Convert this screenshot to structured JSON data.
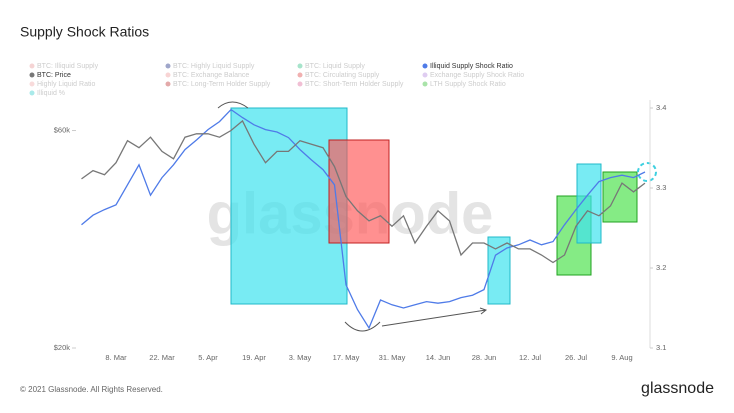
{
  "chart_data": {
    "type": "line",
    "title": "Supply Shock Ratios",
    "watermark": "glassnode",
    "footer": "© 2021 Glassnode. All Rights Reserved.",
    "logo": "glassnode",
    "categories": [
      null,
      null,
      null,
      "8. Mar",
      null,
      null,
      null,
      "22. Mar",
      null,
      null,
      null,
      "5. Apr",
      null,
      null,
      null,
      "19. Apr",
      null,
      null,
      null,
      "3. May",
      null,
      null,
      null,
      "17. May",
      null,
      null,
      null,
      "31. May",
      null,
      null,
      null,
      "14. Jun",
      null,
      null,
      null,
      "28. Jun",
      null,
      null,
      null,
      "12. Jul",
      null,
      null,
      null,
      "26. Jul",
      null,
      null,
      null,
      "9. Aug",
      null,
      null
    ],
    "ylog": true,
    "ylim": [
      20000,
      70000
    ],
    "yticks": [
      {
        "value": 20000,
        "label": "$20k"
      },
      {
        "value": 60000,
        "label": "$60k"
      }
    ],
    "y2lim": [
      3.1,
      3.41
    ],
    "y2ticks": [
      3.1,
      3.2,
      3.3,
      3.4
    ],
    "series": [
      {
        "name": "BTC: Illiquid Supply",
        "color": "#e8a0a0",
        "hidden": true
      },
      {
        "name": "BTC: Highly Liquid Supply",
        "color": "#2b3a8a",
        "hidden": true
      },
      {
        "name": "BTC: Liquid Supply",
        "color": "#3cc48c",
        "hidden": true
      },
      {
        "name": "Illiquid Supply Shock Ratio",
        "color": "#4f7be8",
        "axis": "y2",
        "values": [
          3.254,
          3.266,
          3.273,
          3.279,
          3.304,
          3.329,
          3.291,
          3.313,
          3.329,
          3.348,
          3.36,
          3.373,
          3.383,
          3.398,
          3.388,
          3.379,
          3.373,
          3.37,
          3.363,
          3.348,
          3.335,
          3.323,
          3.304,
          3.179,
          3.148,
          3.125,
          3.16,
          3.154,
          3.15,
          3.154,
          3.158,
          3.156,
          3.158,
          3.163,
          3.166,
          3.173,
          3.216,
          3.225,
          3.229,
          3.235,
          3.229,
          3.233,
          3.254,
          3.273,
          3.291,
          3.308,
          3.313,
          3.316,
          3.313,
          3.32
        ]
      },
      {
        "name": "BTC: Price",
        "color": "#777777",
        "values": [
          47000,
          49000,
          48000,
          51000,
          57000,
          55000,
          58000,
          54000,
          52000,
          58000,
          59000,
          59000,
          58000,
          60000,
          63000,
          56000,
          51000,
          54000,
          54000,
          57000,
          56000,
          55000,
          50000,
          43000,
          40000,
          38000,
          39000,
          37000,
          39000,
          34000,
          37000,
          40000,
          38000,
          32000,
          34000,
          34000,
          33000,
          34000,
          33000,
          33000,
          32000,
          30800,
          32000,
          37000,
          40000,
          39000,
          41000,
          46000,
          44000,
          46000
        ]
      },
      {
        "name": "BTC: Exchange Balance",
        "color": "#f0a0a0",
        "hidden": true
      },
      {
        "name": "BTC: Circulating Supply",
        "color": "#e05050",
        "hidden": true
      },
      {
        "name": "Exchange Supply Shock Ratio",
        "color": "#b890e0",
        "hidden": true
      },
      {
        "name": "Highly Liquid Ratio",
        "color": "#f0b0b0",
        "hidden": true
      },
      {
        "name": "BTC: Long-Term Holder Supply",
        "color": "#c04040",
        "hidden": true
      },
      {
        "name": "BTC: Short-Term Holder Supply",
        "color": "#e070a0",
        "hidden": true
      },
      {
        "name": "LTH Supply Shock Ratio",
        "color": "#40c040",
        "hidden": true
      },
      {
        "name": "Illiquid %",
        "color": "#40d0d0",
        "hidden": true
      }
    ]
  }
}
